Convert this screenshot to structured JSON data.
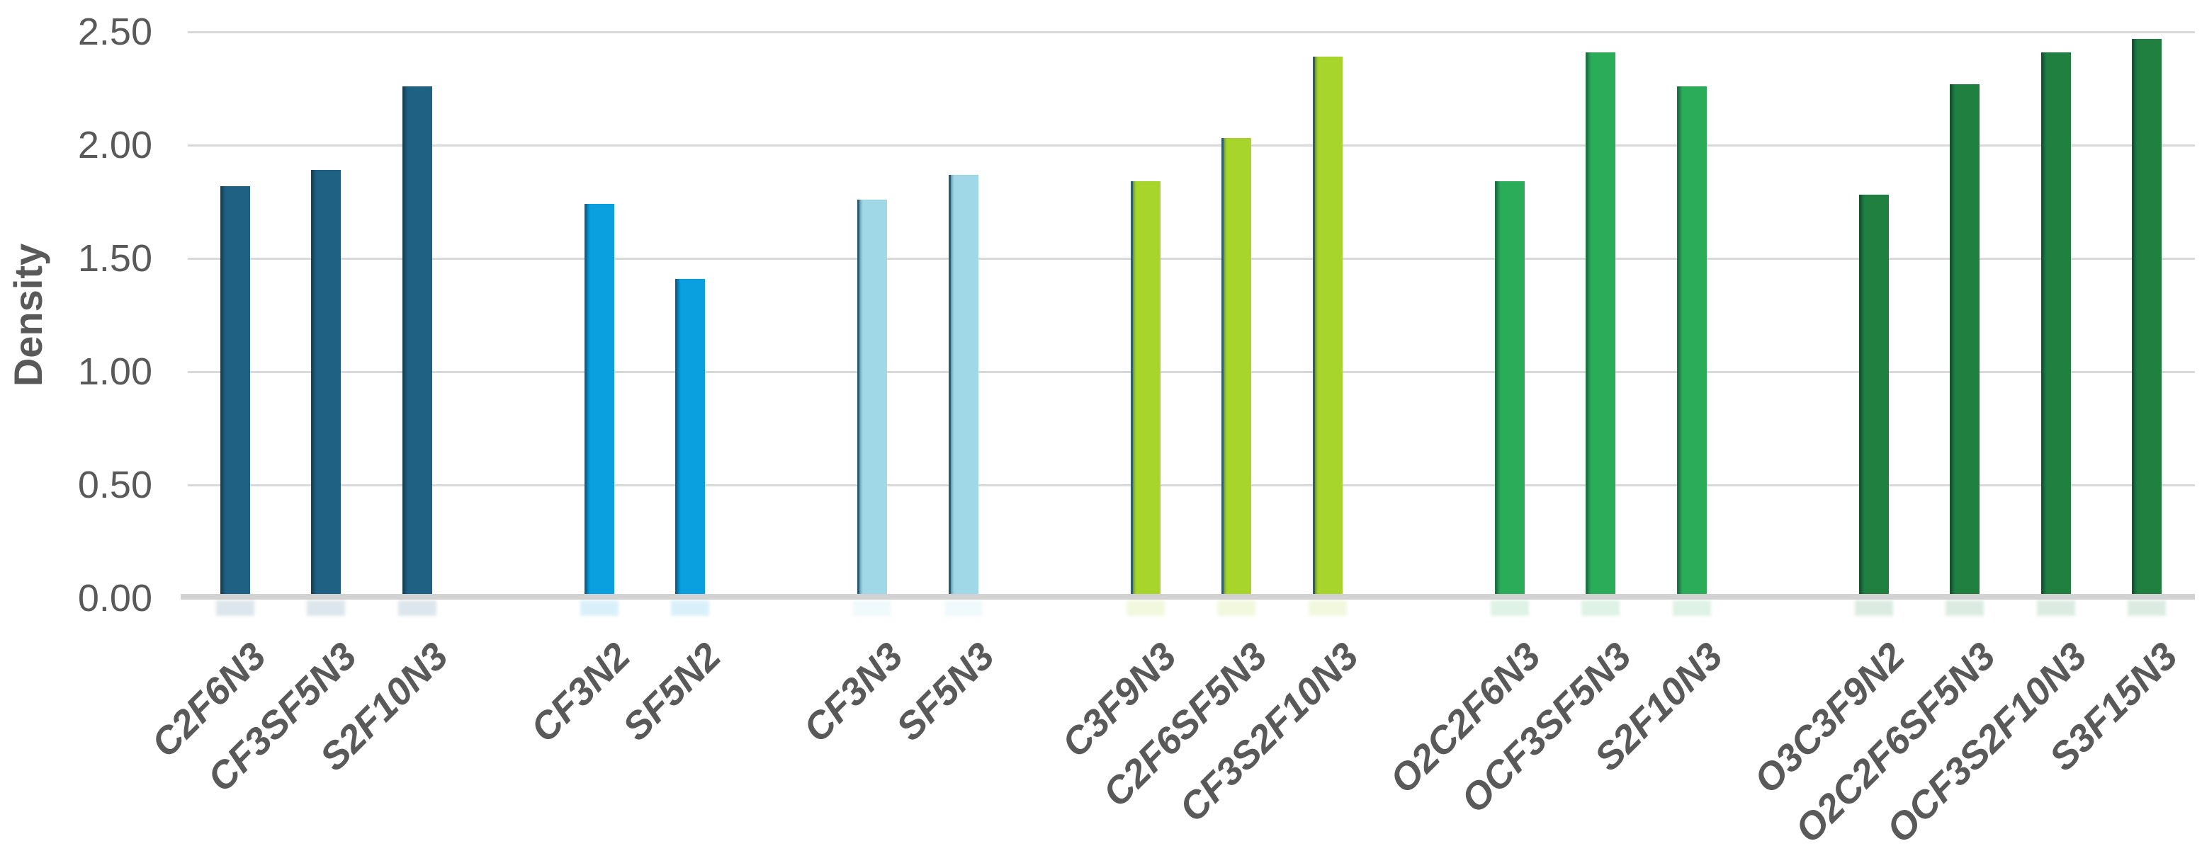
{
  "chart_data": {
    "type": "bar",
    "ylabel": "Density",
    "xlabel": "",
    "ylim": [
      0,
      2.5
    ],
    "ytick_labels": [
      "0.00",
      "0.50",
      "1.00",
      "1.50",
      "2.00",
      "2.50"
    ],
    "ytick_values": [
      0,
      0.5,
      1.0,
      1.5,
      2.0,
      2.5
    ],
    "grid": true,
    "legend_position": "none",
    "category_label_style": "rotated-45deg-bold-italic",
    "gridline_color": "#D9D9D9",
    "axis_line_color": "#D2D2D2",
    "text_color": "#595959",
    "groups": [
      {
        "name": "dark-teal-group",
        "color": "#1F6183",
        "edge": "#174459",
        "bars": [
          {
            "label": "C2F6N3",
            "value": 1.82
          },
          {
            "label": "CF3SF5N3",
            "value": 1.89
          },
          {
            "label": "S2F10N3",
            "value": 2.26
          }
        ]
      },
      {
        "name": "bright-blue-group",
        "color": "#0AA0E0",
        "edge": "#0C6392",
        "bars": [
          {
            "label": "CF3N2",
            "value": 1.74
          },
          {
            "label": "SF5N2",
            "value": 1.41
          }
        ]
      },
      {
        "name": "light-blue-group",
        "color": "#A0D8E8",
        "edge": "#265D74",
        "bars": [
          {
            "label": "CF3N3",
            "value": 1.76
          },
          {
            "label": "SF5N3",
            "value": 1.87
          }
        ]
      },
      {
        "name": "yellow-green-group",
        "color": "#A8D52B",
        "edge": "#2F5D73",
        "bars": [
          {
            "label": "C3F9N3",
            "value": 1.84
          },
          {
            "label": "C2F6SF5N3",
            "value": 2.03
          },
          {
            "label": "CF3S2F10N3",
            "value": 2.39
          }
        ]
      },
      {
        "name": "medium-green-group",
        "color": "#2BAC59",
        "edge": "#1C7540",
        "bars": [
          {
            "label": "O2C2F6N3",
            "value": 1.84
          },
          {
            "label": "OCF3SF5N3",
            "value": 2.41
          },
          {
            "label": "S2F10N3",
            "value": 2.26
          }
        ]
      },
      {
        "name": "dark-green-group",
        "color": "#1F8040",
        "edge": "#14552B",
        "bars": [
          {
            "label": "O3C3F9N2",
            "value": 1.78
          },
          {
            "label": "O2C2F6SF5N3",
            "value": 2.27
          },
          {
            "label": "OCF3S2F10N3",
            "value": 2.41
          },
          {
            "label": "S3F15N3",
            "value": 2.47
          }
        ]
      }
    ]
  }
}
